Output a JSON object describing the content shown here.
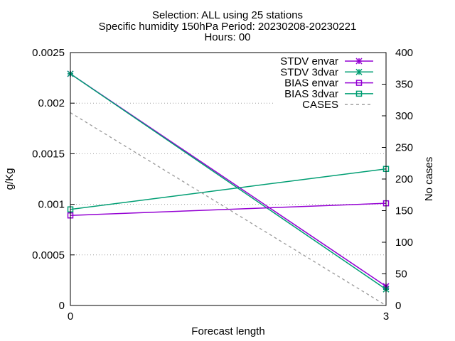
{
  "chart_data": {
    "type": "line",
    "title_lines": [
      "Selection: ALL using    25 stations",
      "Specific humidity 150hPa   Period: 20230208-20230221",
      "Hours: 00"
    ],
    "xlabel": "Forecast length",
    "ylabel": "g/Kg",
    "y2label": "No cases",
    "x": [
      0,
      3
    ],
    "x_ticks": [
      "0",
      "3"
    ],
    "xlim": [
      0,
      3
    ],
    "ylim": [
      0,
      0.0025
    ],
    "y_ticks": [
      "0",
      "0.0005",
      "0.001",
      "0.0015",
      "0.002",
      "0.0025"
    ],
    "y2lim": [
      0,
      400
    ],
    "y2_ticks": [
      "0",
      "50",
      "100",
      "150",
      "200",
      "250",
      "300",
      "350",
      "400"
    ],
    "grid": true,
    "legend_position": "top-right",
    "series": [
      {
        "name": "STDV envar",
        "axis": "y",
        "color": "#9400d3",
        "marker": "x-star",
        "values": [
          0.00229,
          0.00019
        ]
      },
      {
        "name": "STDV 3dvar",
        "axis": "y",
        "color": "#009e73",
        "marker": "x-star",
        "values": [
          0.00229,
          0.00016
        ]
      },
      {
        "name": "BIAS envar",
        "axis": "y",
        "color": "#9400d3",
        "marker": "square",
        "values": [
          0.00089,
          0.00101
        ]
      },
      {
        "name": "BIAS 3dvar",
        "axis": "y",
        "color": "#009e73",
        "marker": "square",
        "values": [
          0.00095,
          0.00135
        ]
      },
      {
        "name": "CASES",
        "axis": "y2",
        "color": "#999999",
        "marker": "none",
        "dashed": true,
        "values": [
          305,
          0
        ]
      }
    ]
  }
}
